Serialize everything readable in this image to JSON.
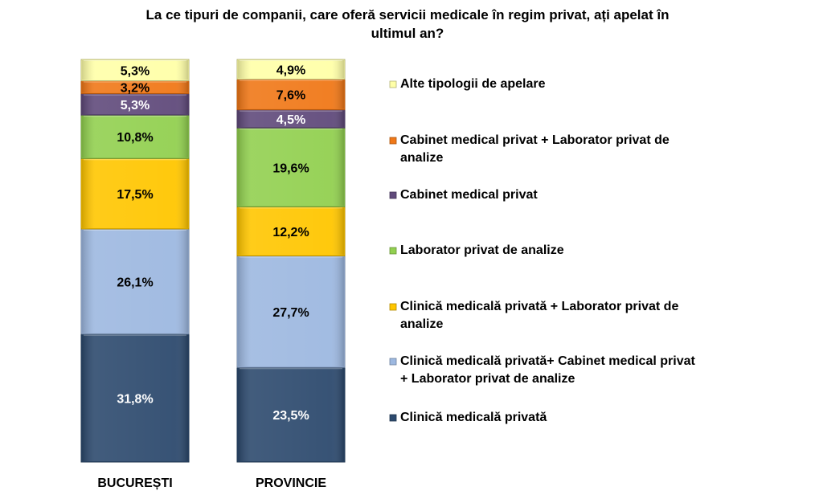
{
  "chart_data": {
    "type": "bar",
    "stacked": true,
    "title": "La ce tipuri de companii, care oferă servicii medicale în regim privat, ați apelat în ultimul an?",
    "title_lines": [
      "La ce tipuri de companii, care oferă servicii medicale în regim privat, ați apelat în",
      "ultimul an?"
    ],
    "categories": [
      "BUCUREȘTI",
      "PROVINCIE"
    ],
    "ylim": [
      0,
      100
    ],
    "grid": false,
    "legend_position": "right",
    "series": [
      {
        "name": "Clinică medicală privată",
        "color": "#2d4a6e",
        "values": [
          31.8,
          23.5
        ],
        "labels": [
          "31,8%",
          "23,5%"
        ]
      },
      {
        "name": "Clinică medicală privată+ Cabinet medical privat + Laborator privat de analize",
        "legend_lines": [
          "Clinică medicală privată+ Cabinet medical privat",
          "+ Laborator privat de analize"
        ],
        "color": "#9db8e0",
        "values": [
          26.1,
          27.7
        ],
        "labels": [
          "26,1%",
          "27,7%"
        ]
      },
      {
        "name": "Clinică medicală privată + Laborator privat de analize",
        "legend_lines": [
          "Clinică medicală privată + Laborator privat de",
          "analize"
        ],
        "color": "#ffc600",
        "values": [
          17.5,
          12.2
        ],
        "labels": [
          "17,5%",
          "12,2%"
        ]
      },
      {
        "name": "Laborator privat de analize",
        "color": "#92d050",
        "values": [
          10.8,
          19.6
        ],
        "labels": [
          "10,8%",
          "19,6%"
        ]
      },
      {
        "name": "Cabinet medical privat",
        "color": "#604a7b",
        "values": [
          5.3,
          4.5
        ],
        "labels": [
          "5,3%",
          "4,5%"
        ]
      },
      {
        "name": "Cabinet medical privat + Laborator privat de analize",
        "legend_lines": [
          "Cabinet medical privat + Laborator privat de",
          "analize"
        ],
        "color": "#f07818",
        "values": [
          3.2,
          7.6
        ],
        "labels": [
          "3,2%",
          "7,6%"
        ]
      },
      {
        "name": "Alte tipologii de apelare",
        "color": "#ffffa8",
        "values": [
          5.3,
          4.9
        ],
        "labels": [
          "5,3%",
          "4,9%"
        ]
      }
    ]
  }
}
